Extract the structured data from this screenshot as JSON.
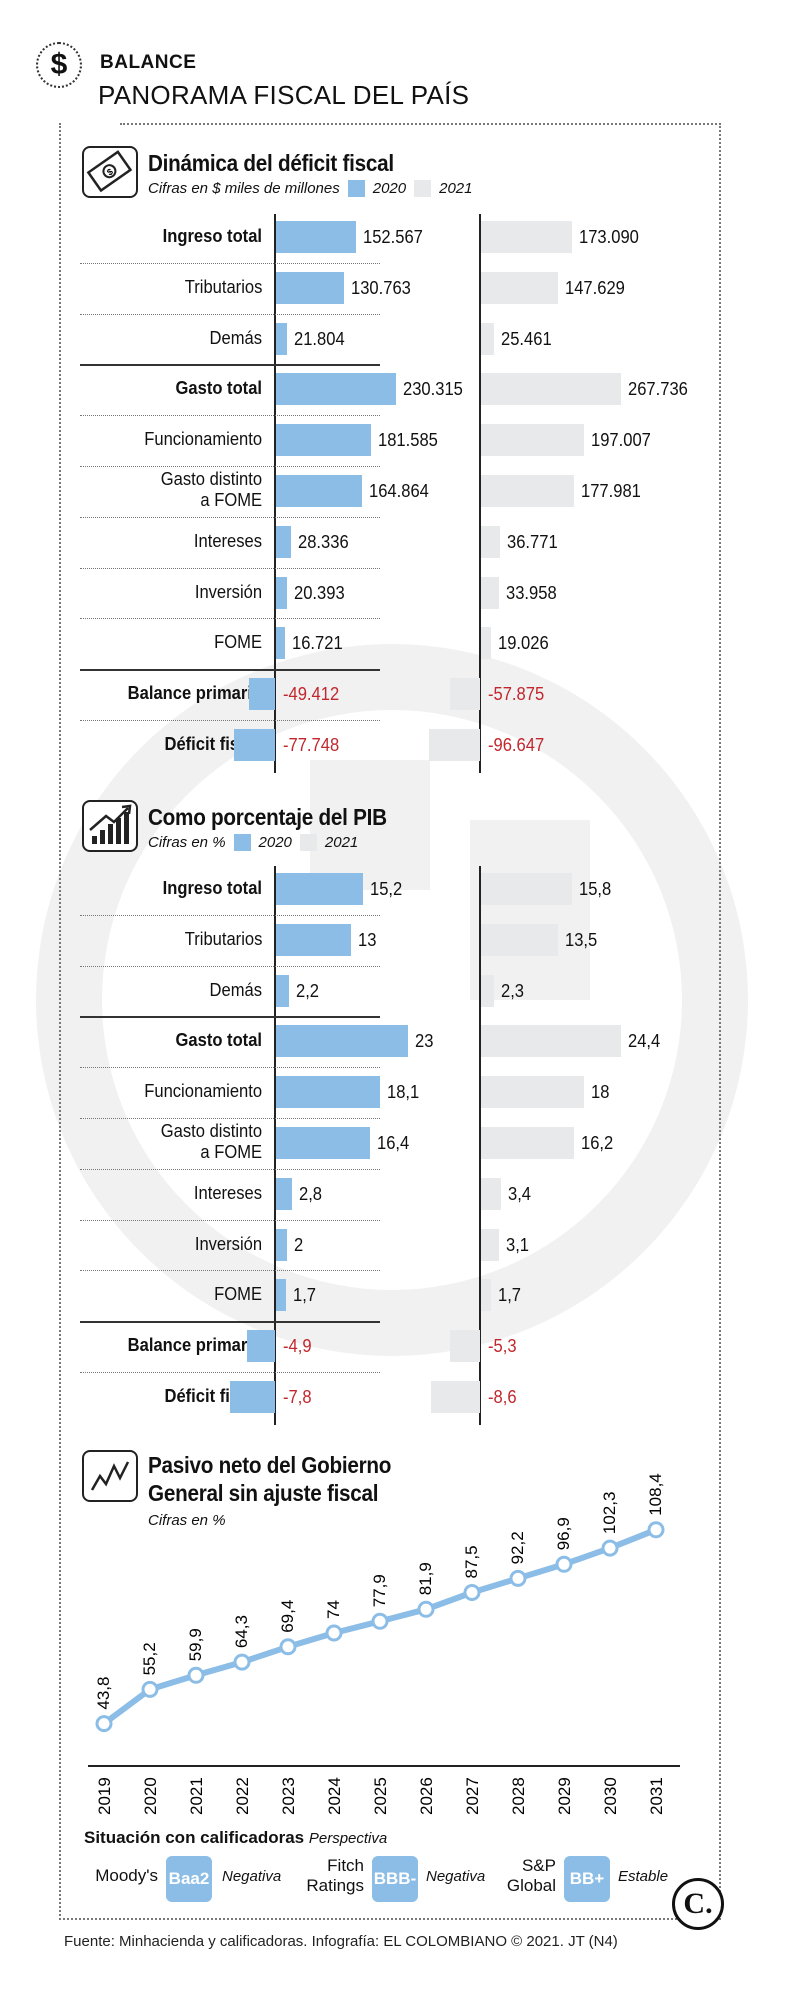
{
  "header": {
    "kicker": "BALANCE",
    "headline": "PANORAMA FISCAL DEL PAÍS"
  },
  "legend": {
    "y2020": "2020",
    "y2021": "2021"
  },
  "chart_data": [
    {
      "type": "bar",
      "title": "Dinámica del déficit fiscal",
      "subtitle": "Cifras en $ miles de millones",
      "categories": [
        "Ingreso total",
        "Tributarios",
        "Demás",
        "Gasto total",
        "Funcionamiento",
        "Gasto distinto a FOME",
        "Intereses",
        "Inversión",
        "FOME",
        "Balance primario",
        "Déficit fiscal"
      ],
      "bold": [
        true,
        false,
        false,
        true,
        false,
        false,
        false,
        false,
        false,
        true,
        true
      ],
      "series": [
        {
          "name": "2020",
          "values": [
            152567,
            130763,
            21804,
            230315,
            181585,
            164864,
            28336,
            20393,
            16721,
            -49412,
            -77748
          ],
          "labels": [
            "152.567",
            "130.763",
            "21.804",
            "230.315",
            "181.585",
            "164.864",
            "28.336",
            "20.393",
            "16.721",
            "-49.412",
            "-77.748"
          ]
        },
        {
          "name": "2021",
          "values": [
            173090,
            147629,
            25461,
            267736,
            197007,
            177981,
            36771,
            33958,
            19026,
            -57875,
            -96647
          ],
          "labels": [
            "173.090",
            "147.629",
            "25.461",
            "267.736",
            "197.007",
            "177.981",
            "36.771",
            "33.958",
            "19.026",
            "-57.875",
            "-96.647"
          ]
        }
      ]
    },
    {
      "type": "bar",
      "title": "Como porcentaje del PIB",
      "subtitle": "Cifras en %",
      "categories": [
        "Ingreso total",
        "Tributarios",
        "Demás",
        "Gasto total",
        "Funcionamiento",
        "Gasto distinto a FOME",
        "Intereses",
        "Inversión",
        "FOME",
        "Balance primario",
        "Déficit fiscal"
      ],
      "bold": [
        true,
        false,
        false,
        true,
        false,
        false,
        false,
        false,
        false,
        true,
        true
      ],
      "series": [
        {
          "name": "2020",
          "values": [
            15.2,
            13,
            2.2,
            23,
            18.1,
            16.4,
            2.8,
            2,
            1.7,
            -4.9,
            -7.8
          ],
          "labels": [
            "15,2",
            "13",
            "2,2",
            "23",
            "18,1",
            "16,4",
            "2,8",
            "2",
            "1,7",
            "-4,9",
            "-7,8"
          ]
        },
        {
          "name": "2021",
          "values": [
            15.8,
            13.5,
            2.3,
            24.4,
            18,
            16.2,
            3.4,
            3.1,
            1.7,
            -5.3,
            -8.6
          ],
          "labels": [
            "15,8",
            "13,5",
            "2,3",
            "24,4",
            "18",
            "16,2",
            "3,4",
            "3,1",
            "1,7",
            "-5,3",
            "-8,6"
          ]
        }
      ]
    },
    {
      "type": "line",
      "title": "Pasivo neto del Gobierno General sin ajuste fiscal",
      "title_lines": [
        "Pasivo neto del Gobierno",
        "General sin ajuste fiscal"
      ],
      "subtitle": "Cifras en %",
      "x": [
        "2019",
        "2020",
        "2021",
        "2022",
        "2023",
        "2024",
        "2025",
        "2026",
        "2027",
        "2028",
        "2029",
        "2030",
        "2031"
      ],
      "y": [
        43.8,
        55.2,
        59.9,
        64.3,
        69.4,
        74,
        77.9,
        81.9,
        87.5,
        92.2,
        96.9,
        102.3,
        108.4
      ],
      "labels": [
        "43,8",
        "55,2",
        "59,9",
        "64,3",
        "69,4",
        "74",
        "77,9",
        "81,9",
        "87,5",
        "92,2",
        "96,9",
        "102,3",
        "108,4"
      ],
      "ylim": [
        35,
        115
      ]
    }
  ],
  "ratings": {
    "title": "Situación con calificadoras",
    "perspective_label": "Perspectiva",
    "items": [
      {
        "agency_line1": "Moody's",
        "agency_line2": "",
        "rating": "Baa2",
        "outlook": "Negativa"
      },
      {
        "agency_line1": "Fitch",
        "agency_line2": "Ratings",
        "rating": "BBB-",
        "outlook": "Negativa"
      },
      {
        "agency_line1": "S&P",
        "agency_line2": "Global",
        "rating": "BB+",
        "outlook": "Estable"
      }
    ]
  },
  "logo": "C.",
  "source": "Fuente: Minhacienda y calificadoras. Infografía: EL COLOMBIANO © 2021. JT (N4)"
}
